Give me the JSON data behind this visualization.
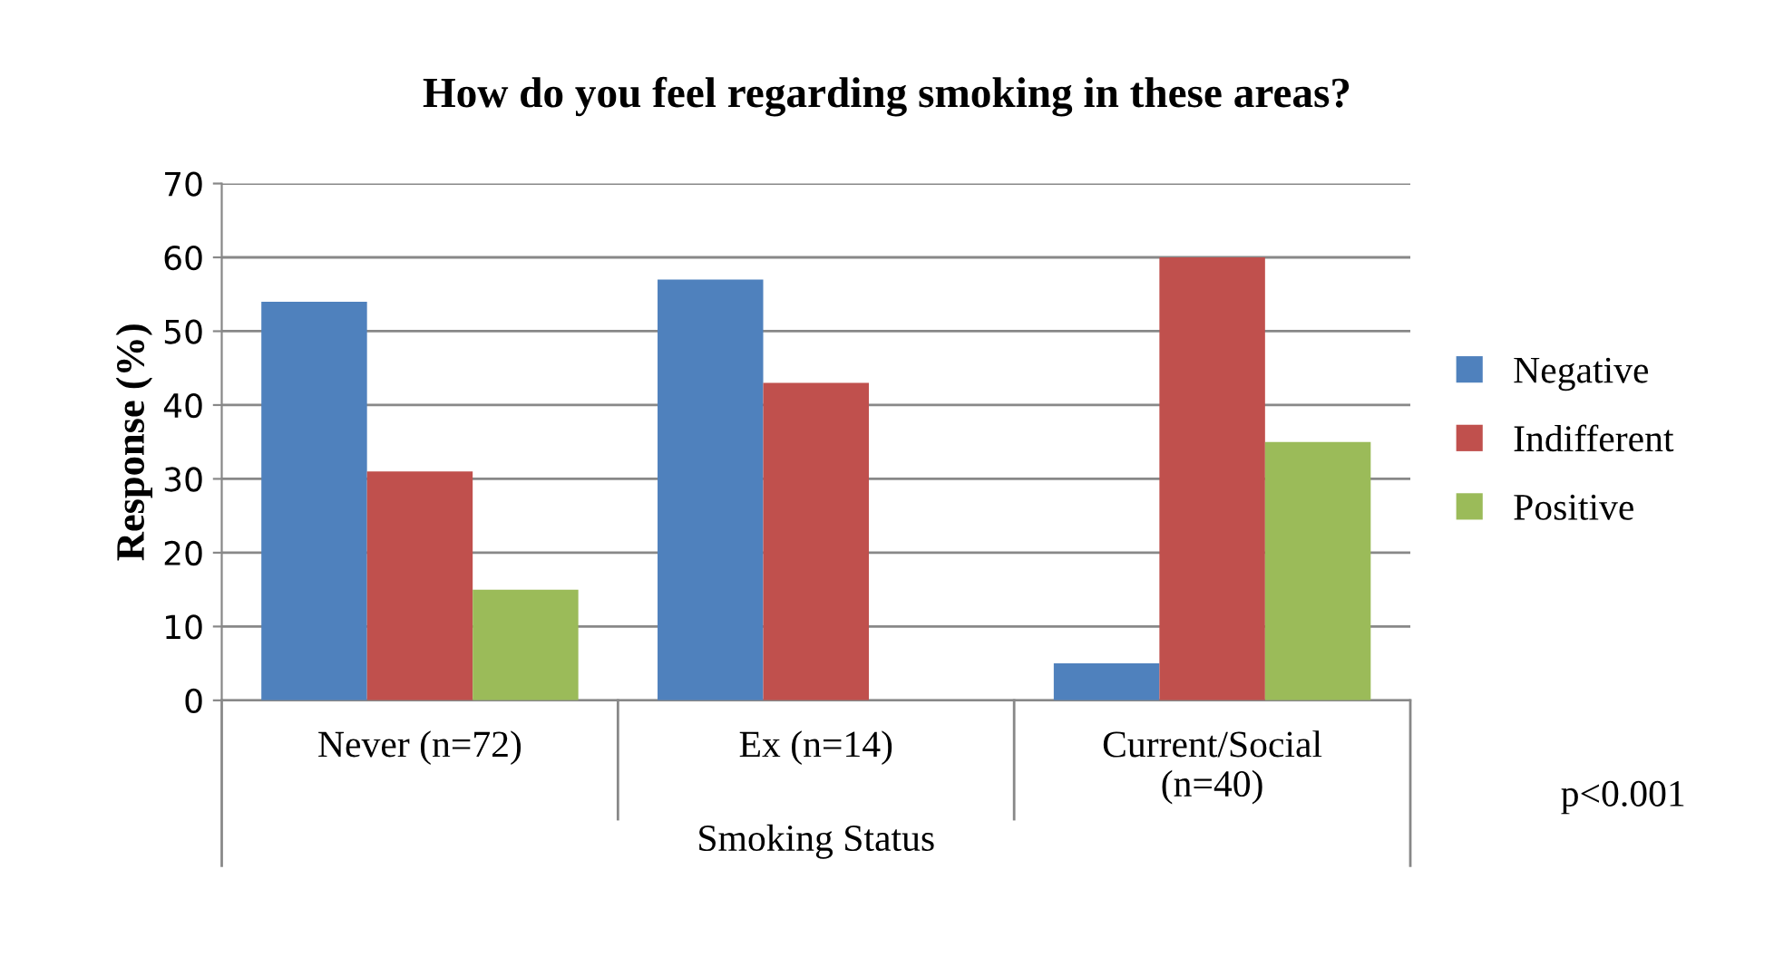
{
  "chart_data": {
    "type": "bar",
    "title": "How do you feel regarding smoking in these areas?",
    "xlabel": "Smoking Status",
    "ylabel": "Response (%)",
    "categories": [
      "Never (n=72)",
      "Ex (n=14)",
      "Current/Social\n(n=40)"
    ],
    "series": [
      {
        "name": "Negative",
        "color": "#4f81bd",
        "values": [
          54,
          57,
          5
        ]
      },
      {
        "name": "Indifferent",
        "color": "#c0504d",
        "values": [
          31,
          43,
          60
        ]
      },
      {
        "name": "Positive",
        "color": "#9bbb59",
        "values": [
          15,
          0,
          35
        ]
      }
    ],
    "ylim": [
      0,
      70
    ],
    "yticks": [
      0,
      10,
      20,
      30,
      40,
      50,
      60,
      70
    ],
    "grid": "y",
    "legend": "right",
    "annotations": [
      "p<0.001"
    ]
  }
}
